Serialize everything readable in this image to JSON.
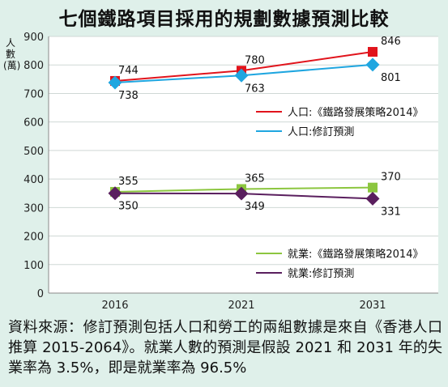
{
  "chart_data": {
    "type": "line",
    "title": "七個鐵路項目採用的規劃數據預測比較",
    "ylabel": "人數(萬)",
    "x": [
      "2016",
      "2021",
      "2031"
    ],
    "ylim": [
      0,
      900
    ],
    "yticks": [
      0,
      100,
      200,
      300,
      400,
      500,
      600,
      700,
      800,
      900
    ],
    "grid": true,
    "series": [
      {
        "name": "人口:《鐵路發展策略2014》",
        "values": [
          744,
          780,
          846
        ],
        "color": "#e1141c",
        "marker": "square",
        "label_pos": "above"
      },
      {
        "name": "人口:修訂預測",
        "values": [
          738,
          763,
          801
        ],
        "color": "#1fa6e0",
        "marker": "diamond",
        "label_pos": "below"
      },
      {
        "name": "就業:《鐵路發展策略2014》",
        "values": [
          355,
          365,
          370
        ],
        "color": "#8cc63f",
        "marker": "square",
        "label_pos": "above"
      },
      {
        "name": "就業:修訂預測",
        "values": [
          350,
          349,
          331
        ],
        "color": "#5a1f5e",
        "marker": "diamond",
        "label_pos": "below"
      }
    ],
    "legends": [
      {
        "placement": "middle-right",
        "series": [
          0,
          1
        ]
      },
      {
        "placement": "bottom-right",
        "series": [
          2,
          3
        ]
      }
    ]
  },
  "source_note": "資料來源：修訂預測包括人口和勞工的兩組數據是來自《香港人口推算 2015-2064》。就業人數的預測是假設 2021 和 2031 年的失業率為 3.5%，即是就業率為 96.5%"
}
